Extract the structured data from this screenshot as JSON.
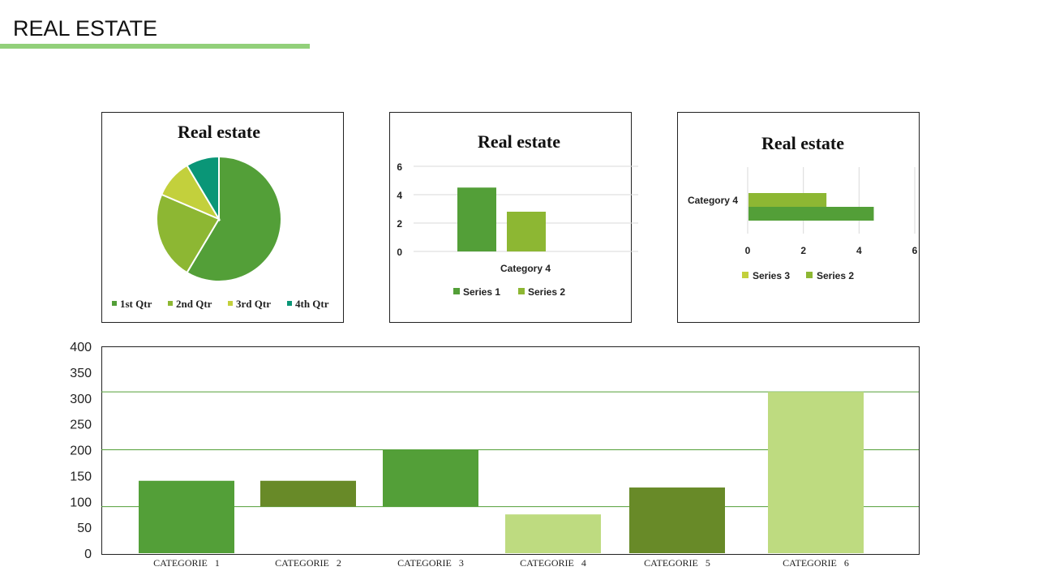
{
  "page": {
    "title": "REAL ESTATE"
  },
  "colors": {
    "accent_bar": "#92d07a",
    "green": "#539f38",
    "light_green": "#8db733",
    "yellow_green": "#c3d03c",
    "teal": "#0a9677",
    "olive": "#688a28",
    "pale_green": "#bedb80"
  },
  "chart_data": [
    {
      "type": "pie",
      "title": "Real estate",
      "categories": [
        "1st Qtr",
        "2nd Qtr",
        "3rd Qtr",
        "4th Qtr"
      ],
      "values": [
        8.2,
        3.2,
        1.4,
        1.2
      ],
      "colors": [
        "#539f38",
        "#8db733",
        "#c3d03c",
        "#0a9677"
      ],
      "legend": "bottom"
    },
    {
      "type": "bar",
      "title": "Real estate",
      "categories": [
        "Category 4"
      ],
      "series": [
        {
          "name": "Series 1",
          "values": [
            4.5
          ],
          "color": "#539f38"
        },
        {
          "name": "Series 2",
          "values": [
            2.8
          ],
          "color": "#8db733"
        }
      ],
      "yticks": [
        "0",
        "2",
        "4",
        "6"
      ],
      "ylim": [
        0,
        6
      ],
      "legend": "bottom"
    },
    {
      "type": "bar",
      "orientation": "horizontal",
      "title": "Real estate",
      "categories": [
        "Category 4"
      ],
      "bars": [
        {
          "value": 2.8,
          "color": "#8db733"
        },
        {
          "value": 4.5,
          "color": "#539f38"
        }
      ],
      "legend_entries": [
        {
          "name": "Series 3",
          "color": "#c3d03c"
        },
        {
          "name": "Series 2",
          "color": "#8db733"
        }
      ],
      "xticks": [
        "0",
        "2",
        "4",
        "6"
      ],
      "xlim": [
        0,
        6
      ],
      "legend": "bottom"
    },
    {
      "type": "bar",
      "title": "",
      "categories": [
        "CATEGORIE   1",
        "CATEGORIE   2",
        "CATEGORIE   3",
        "CATEGORIE   4",
        "CATEGORIE   5",
        "CATEGORIE   6"
      ],
      "ranges": [
        [
          0,
          140
        ],
        [
          90,
          140
        ],
        [
          90,
          200
        ],
        [
          0,
          75
        ],
        [
          0,
          127
        ],
        [
          0,
          312
        ]
      ],
      "colors": [
        "#539f38",
        "#688a28",
        "#539f38",
        "#bedb80",
        "#688a28",
        "#bedb80"
      ],
      "reference_lines": [
        90,
        200,
        312
      ],
      "yticks": [
        "0",
        "50",
        "100",
        "150",
        "200",
        "250",
        "300",
        "350",
        "400"
      ],
      "ylim": [
        0,
        400
      ]
    }
  ]
}
